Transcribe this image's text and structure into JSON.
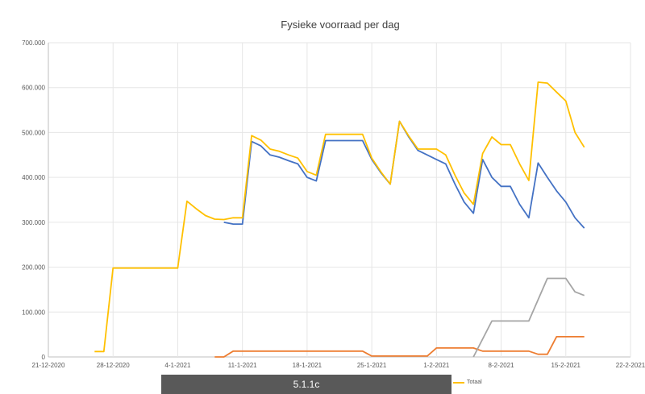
{
  "chart_data": {
    "type": "line",
    "title": "Fysieke voorraad per dag",
    "xlabel": "",
    "ylabel": "",
    "x_ticks": [
      "21-12-2020",
      "28-12-2020",
      "4-1-2021",
      "11-1-2021",
      "18-1-2021",
      "25-1-2021",
      "1-2-2021",
      "8-2-2021",
      "15-2-2021",
      "22-2-2021"
    ],
    "y_ticks": [
      "0",
      "100.000",
      "200.000",
      "300.000",
      "400.000",
      "500.000",
      "600.000",
      "700.000"
    ],
    "xlim": [
      "2020-12-21",
      "2021-02-22"
    ],
    "ylim": [
      0,
      700000
    ],
    "grid": true,
    "legend_position": "bottom",
    "series": [
      {
        "name": "",
        "color": "#4472c4",
        "points": [
          [
            "2021-01-09",
            300000
          ],
          [
            "2021-01-10",
            296000
          ],
          [
            "2021-01-11",
            296000
          ],
          [
            "2021-01-12",
            480000
          ],
          [
            "2021-01-13",
            470000
          ],
          [
            "2021-01-14",
            450000
          ],
          [
            "2021-01-15",
            445000
          ],
          [
            "2021-01-16",
            437000
          ],
          [
            "2021-01-17",
            430000
          ],
          [
            "2021-01-18",
            400000
          ],
          [
            "2021-01-19",
            392000
          ],
          [
            "2021-01-20",
            482000
          ],
          [
            "2021-01-21",
            482000
          ],
          [
            "2021-01-22",
            482000
          ],
          [
            "2021-01-23",
            482000
          ],
          [
            "2021-01-24",
            482000
          ],
          [
            "2021-01-25",
            440000
          ],
          [
            "2021-01-26",
            410000
          ],
          [
            "2021-01-27",
            385000
          ],
          [
            "2021-01-28",
            525000
          ],
          [
            "2021-01-29",
            490000
          ],
          [
            "2021-01-30",
            460000
          ],
          [
            "2021-01-31",
            450000
          ],
          [
            "2021-02-01",
            440000
          ],
          [
            "2021-02-02",
            430000
          ],
          [
            "2021-02-03",
            385000
          ],
          [
            "2021-02-04",
            345000
          ],
          [
            "2021-02-05",
            320000
          ],
          [
            "2021-02-06",
            440000
          ],
          [
            "2021-02-07",
            400000
          ],
          [
            "2021-02-08",
            380000
          ],
          [
            "2021-02-09",
            380000
          ],
          [
            "2021-02-10",
            340000
          ],
          [
            "2021-02-11",
            310000
          ],
          [
            "2021-02-12",
            432000
          ],
          [
            "2021-02-13",
            400000
          ],
          [
            "2021-02-14",
            370000
          ],
          [
            "2021-02-15",
            345000
          ],
          [
            "2021-02-16",
            310000
          ],
          [
            "2021-02-17",
            287000
          ]
        ]
      },
      {
        "name": "",
        "color": "#ed7d31",
        "points": [
          [
            "2021-01-08",
            0
          ],
          [
            "2021-01-09",
            0
          ],
          [
            "2021-01-10",
            13000
          ],
          [
            "2021-01-24",
            13000
          ],
          [
            "2021-01-25",
            2000
          ],
          [
            "2021-01-31",
            2000
          ],
          [
            "2021-02-01",
            20000
          ],
          [
            "2021-02-05",
            20000
          ],
          [
            "2021-02-06",
            13000
          ],
          [
            "2021-02-11",
            13000
          ],
          [
            "2021-02-12",
            6000
          ],
          [
            "2021-02-13",
            6000
          ],
          [
            "2021-02-14",
            45000
          ],
          [
            "2021-02-17",
            45000
          ]
        ]
      },
      {
        "name": "",
        "color": "#a5a5a5",
        "points": [
          [
            "2021-02-05",
            0
          ],
          [
            "2021-02-07",
            80000
          ],
          [
            "2021-02-11",
            80000
          ],
          [
            "2021-02-13",
            175000
          ],
          [
            "2021-02-15",
            175000
          ],
          [
            "2021-02-16",
            145000
          ],
          [
            "2021-02-17",
            137000
          ]
        ]
      },
      {
        "name": "Totaal",
        "color": "#ffc000",
        "points": [
          [
            "2020-12-26",
            12000
          ],
          [
            "2020-12-27",
            12000
          ],
          [
            "2020-12-28",
            198000
          ],
          [
            "2021-01-04",
            198000
          ],
          [
            "2021-01-05",
            347000
          ],
          [
            "2021-01-06",
            330000
          ],
          [
            "2021-01-07",
            315000
          ],
          [
            "2021-01-08",
            307000
          ],
          [
            "2021-01-09",
            306000
          ],
          [
            "2021-01-10",
            310000
          ],
          [
            "2021-01-11",
            310000
          ],
          [
            "2021-01-12",
            493000
          ],
          [
            "2021-01-13",
            483000
          ],
          [
            "2021-01-14",
            463000
          ],
          [
            "2021-01-15",
            458000
          ],
          [
            "2021-01-16",
            450000
          ],
          [
            "2021-01-17",
            443000
          ],
          [
            "2021-01-18",
            413000
          ],
          [
            "2021-01-19",
            405000
          ],
          [
            "2021-01-20",
            496000
          ],
          [
            "2021-01-21",
            496000
          ],
          [
            "2021-01-22",
            496000
          ],
          [
            "2021-01-23",
            496000
          ],
          [
            "2021-01-24",
            496000
          ],
          [
            "2021-01-25",
            443000
          ],
          [
            "2021-01-26",
            412000
          ],
          [
            "2021-01-27",
            385000
          ],
          [
            "2021-01-28",
            525000
          ],
          [
            "2021-01-29",
            492000
          ],
          [
            "2021-01-30",
            463000
          ],
          [
            "2021-01-31",
            463000
          ],
          [
            "2021-02-01",
            463000
          ],
          [
            "2021-02-02",
            450000
          ],
          [
            "2021-02-03",
            405000
          ],
          [
            "2021-02-04",
            365000
          ],
          [
            "2021-02-05",
            340000
          ],
          [
            "2021-02-06",
            453000
          ],
          [
            "2021-02-07",
            490000
          ],
          [
            "2021-02-08",
            473000
          ],
          [
            "2021-02-09",
            473000
          ],
          [
            "2021-02-10",
            430000
          ],
          [
            "2021-02-11",
            393000
          ],
          [
            "2021-02-12",
            612000
          ],
          [
            "2021-02-13",
            610000
          ],
          [
            "2021-02-14",
            590000
          ],
          [
            "2021-02-15",
            570000
          ],
          [
            "2021-02-16",
            500000
          ],
          [
            "2021-02-17",
            467000
          ]
        ]
      }
    ]
  },
  "caption": "5.1.1c"
}
